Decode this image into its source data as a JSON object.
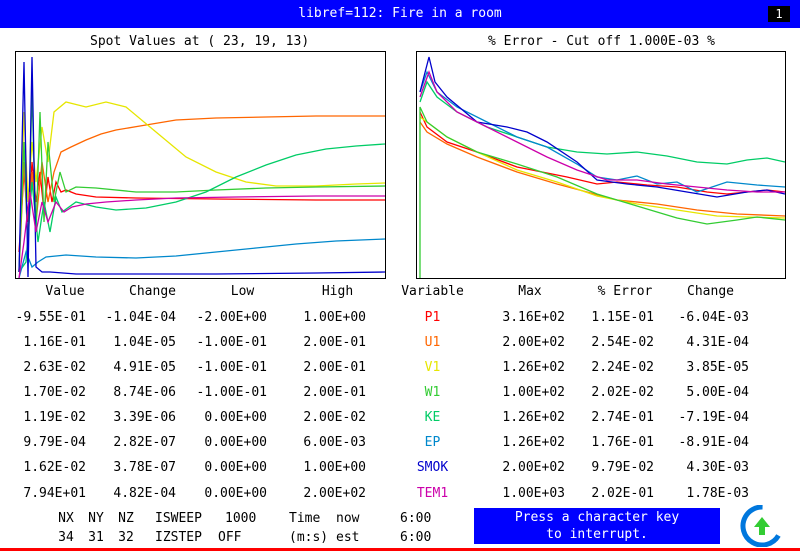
{
  "window": {
    "title": "libref=112: Fire in a room",
    "case_number": "1"
  },
  "left_plot": {
    "title": "Spot Values at ( 23, 19, 13)"
  },
  "right_plot": {
    "title": "% Error - Cut off 1.000E-03 %"
  },
  "left_table": {
    "headers": {
      "value": "Value",
      "change": "Change",
      "low": "Low",
      "high": "High"
    },
    "rows": [
      {
        "value": "-9.55E-01",
        "change": "-1.04E-04",
        "low": "-2.00E+00",
        "high": "1.00E+00"
      },
      {
        "value": "1.16E-01",
        "change": "1.04E-05",
        "low": "-1.00E-01",
        "high": "2.00E-01"
      },
      {
        "value": "2.63E-02",
        "change": "4.91E-05",
        "low": "-1.00E-01",
        "high": "2.00E-01"
      },
      {
        "value": "1.70E-02",
        "change": "8.74E-06",
        "low": "-1.00E-01",
        "high": "2.00E-01"
      },
      {
        "value": "1.19E-02",
        "change": "3.39E-06",
        "low": "0.00E+00",
        "high": "2.00E-02"
      },
      {
        "value": "9.79E-04",
        "change": "2.82E-07",
        "low": "0.00E+00",
        "high": "6.00E-03"
      },
      {
        "value": "1.62E-02",
        "change": "3.78E-07",
        "low": "0.00E+00",
        "high": "1.00E+00"
      },
      {
        "value": "7.94E+01",
        "change": "4.82E-04",
        "low": "0.00E+00",
        "high": "2.00E+02"
      }
    ]
  },
  "right_table": {
    "headers": {
      "variable": "Variable",
      "max": "Max",
      "error": "% Error",
      "change": "Change"
    },
    "rows": [
      {
        "variable": "P1",
        "color": "#ff0000",
        "max": "3.16E+02",
        "error": "1.15E-01",
        "change": "-6.04E-03"
      },
      {
        "variable": "U1",
        "color": "#ff6600",
        "max": "2.00E+02",
        "error": "2.54E-02",
        "change": "4.31E-04"
      },
      {
        "variable": "V1",
        "color": "#e6e600",
        "max": "1.26E+02",
        "error": "2.24E-02",
        "change": "3.85E-05"
      },
      {
        "variable": "W1",
        "color": "#33cc33",
        "max": "1.00E+02",
        "error": "2.02E-02",
        "change": "5.00E-04"
      },
      {
        "variable": "KE",
        "color": "#00cc66",
        "max": "1.26E+02",
        "error": "2.74E-01",
        "change": "-7.19E-04"
      },
      {
        "variable": "EP",
        "color": "#0088cc",
        "max": "1.26E+02",
        "error": "1.76E-01",
        "change": "-8.91E-04"
      },
      {
        "variable": "SMOK",
        "color": "#0000cc",
        "max": "2.00E+02",
        "error": "9.79E-02",
        "change": "4.30E-03"
      },
      {
        "variable": "TEM1",
        "color": "#cc00aa",
        "max": "1.00E+03",
        "error": "2.02E-01",
        "change": "1.78E-03"
      }
    ]
  },
  "status": {
    "nx_label": "NX",
    "ny_label": "NY",
    "nz_label": "NZ",
    "nx": "34",
    "ny": "31",
    "nz": "32",
    "isweep_label": "ISWEEP",
    "isweep": "1000",
    "izstep_label": "IZSTEP",
    "izstep": "OFF",
    "time_label": "Time",
    "now_label": "now",
    "time_now": "6:00",
    "ms_label": "(m:s)",
    "est_label": "est",
    "time_est": "6:00"
  },
  "interrupt": {
    "line1": "Press a character key",
    "line2": "to interrupt."
  },
  "logo": {
    "icon": "phoenics-logo-icon",
    "colors": [
      "#0077dd",
      "#33cc33"
    ]
  }
}
